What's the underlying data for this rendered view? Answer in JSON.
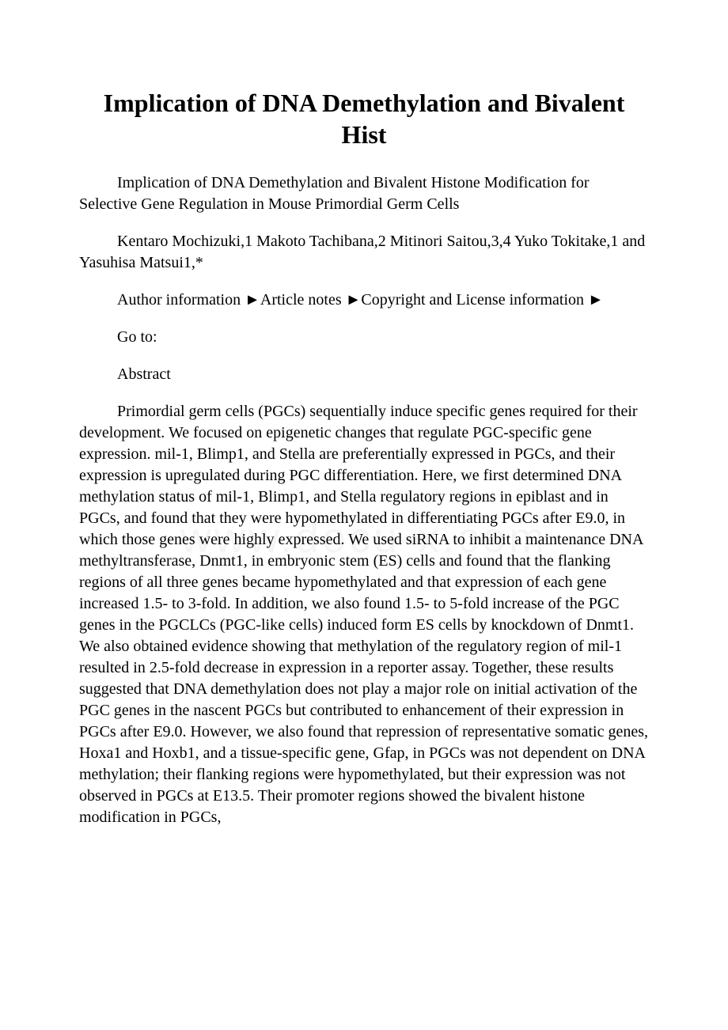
{
  "title": "Implication of DNA Demethylation and Bivalent Hist",
  "subtitle": "Implication of DNA Demethylation and Bivalent Histone Modification for Selective Gene Regulation in Mouse Primordial Germ Cells",
  "authors": "Kentaro Mochizuki,1 Makoto Tachibana,2 Mitinori Saitou,3,4 Yuko Tokitake,1 and Yasuhisa Matsui1,*",
  "infoLine": "Author information ►Article notes ►Copyright and License information ►",
  "goto": "Go to:",
  "sectionHeading": "Abstract",
  "abstractText": "Primordial germ cells (PGCs) sequentially induce specific genes required for their development. We focused on epigenetic changes that regulate PGC-specific gene expression. mil-1, Blimp1, and Stella are preferentially expressed in PGCs, and their expression is upregulated during PGC differentiation. Here, we first determined DNA methylation status of mil-1, Blimp1, and Stella regulatory regions in epiblast and in PGCs, and found that they were hypomethylated in differentiating PGCs after E9.0, in which those genes were highly expressed. We used siRNA to inhibit a maintenance DNA methyltransferase, Dnmt1, in embryonic stem (ES) cells and found that the flanking regions of all three genes became hypomethylated and that expression of each gene increased 1.5- to 3-fold. In addition, we also found 1.5- to 5-fold increase of the PGC genes in the PGCLCs (PGC-like cells) induced form ES cells by knockdown of Dnmt1. We also obtained evidence showing that methylation of the regulatory region of mil-1 resulted in 2.5-fold decrease in expression in a reporter assay. Together, these results suggested that DNA demethylation does not play a major role on initial activation of the PGC genes in the nascent PGCs but contributed to enhancement of their expression in PGCs after E9.0. However, we also found that repression of representative somatic genes, Hoxa1 and Hoxb1, and a tissue-specific gene, Gfap, in PGCs was not dependent on DNA methylation; their flanking regions were hypomethylated, but their expression was not observed in PGCs at E13.5. Their promoter regions showed the bivalent histone modification in PGCs,",
  "watermarkText": "www.docu-x.com",
  "colors": {
    "background": "#ffffff",
    "text": "#000000",
    "watermark": "rgba(0,0,0,0.04)"
  },
  "typography": {
    "title_fontsize": 32,
    "body_fontsize": 20,
    "font_family": "Times New Roman"
  }
}
